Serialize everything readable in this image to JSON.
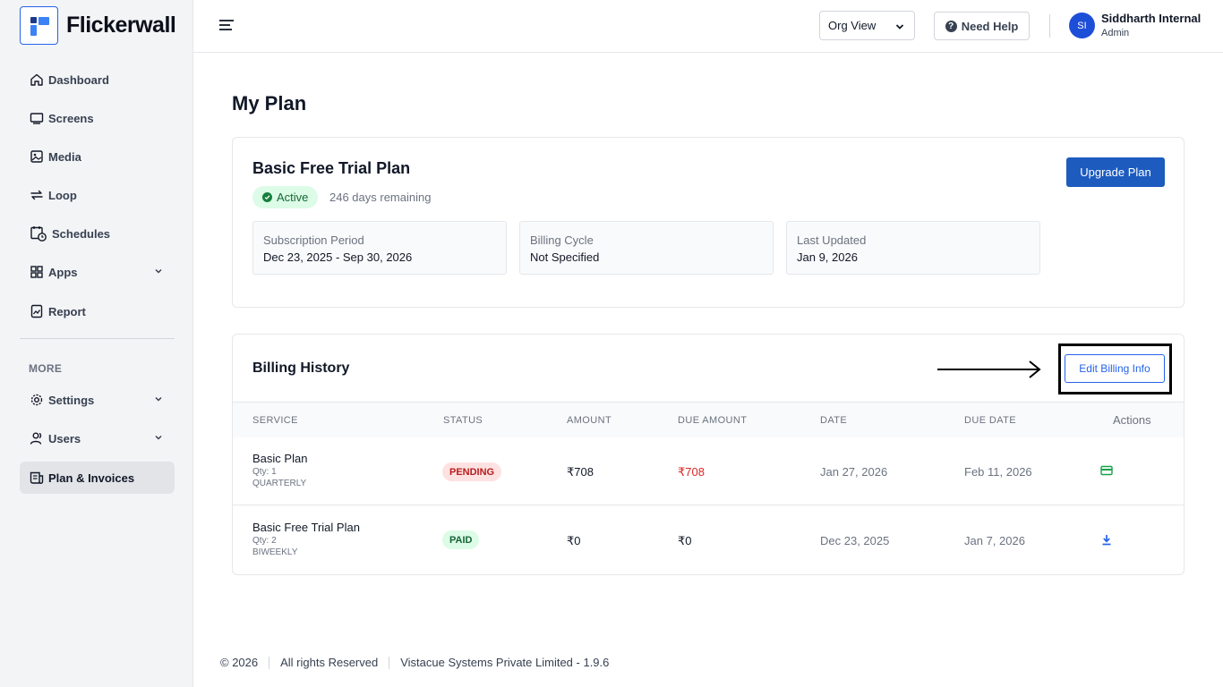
{
  "brand": {
    "name": "Flickerwall"
  },
  "sidebar": {
    "items": [
      {
        "label": "Dashboard",
        "icon": "home-icon"
      },
      {
        "label": "Screens",
        "icon": "screen-icon"
      },
      {
        "label": "Media",
        "icon": "image-icon"
      },
      {
        "label": "Loop",
        "icon": "loop-icon"
      },
      {
        "label": "Schedules",
        "icon": "calendar-clock-icon"
      },
      {
        "label": "Apps",
        "icon": "grid-icon"
      },
      {
        "label": "Report",
        "icon": "report-icon"
      }
    ],
    "section_label": "MORE",
    "more_items": [
      {
        "label": "Settings",
        "icon": "gear-icon"
      },
      {
        "label": "Users",
        "icon": "users-icon"
      },
      {
        "label": "Plan & Invoices",
        "icon": "invoice-icon"
      }
    ]
  },
  "topbar": {
    "org_view": "Org View",
    "help_label": "Need Help",
    "user": {
      "initials": "SI",
      "name": "Siddharth Internal",
      "role": "Admin"
    }
  },
  "page": {
    "title": "My Plan"
  },
  "plan": {
    "name": "Basic Free Trial Plan",
    "status": "Active",
    "days_remaining": "246 days remaining",
    "upgrade_label": "Upgrade Plan",
    "info": [
      {
        "label": "Subscription Period",
        "value": "Dec 23, 2025 - Sep 30, 2026"
      },
      {
        "label": "Billing Cycle",
        "value": "Not Specified"
      },
      {
        "label": "Last Updated",
        "value": "Jan 9, 2026"
      }
    ]
  },
  "billing": {
    "title": "Billing History",
    "edit_label": "Edit Billing Info",
    "columns": [
      "SERVICE",
      "STATUS",
      "AMOUNT",
      "DUE AMOUNT",
      "DATE",
      "DUE DATE",
      "Actions"
    ],
    "rows": [
      {
        "service": "Basic Plan",
        "qty": "Qty: 1",
        "cycle": "QUARTERLY",
        "status": "PENDING",
        "amount": "₹708",
        "due_amount": "₹708",
        "date": "Jan 27, 2026",
        "due_date": "Feb 11, 2026",
        "action_icon": "credit-card-icon"
      },
      {
        "service": "Basic Free Trial Plan",
        "qty": "Qty: 2",
        "cycle": "BIWEEKLY",
        "status": "PAID",
        "amount": "₹0",
        "due_amount": "₹0",
        "date": "Dec 23, 2025",
        "due_date": "Jan 7, 2026",
        "action_icon": "download-icon"
      }
    ]
  },
  "footer": {
    "copyright": "© 2026",
    "rights": "All rights Reserved",
    "company": "Vistacue Systems Private Limited - 1.9.6"
  },
  "colors": {
    "primary": "#1d5bbf",
    "link_blue": "#2563eb",
    "pending_red": "#dc2626",
    "paid_green": "#16a34a"
  }
}
